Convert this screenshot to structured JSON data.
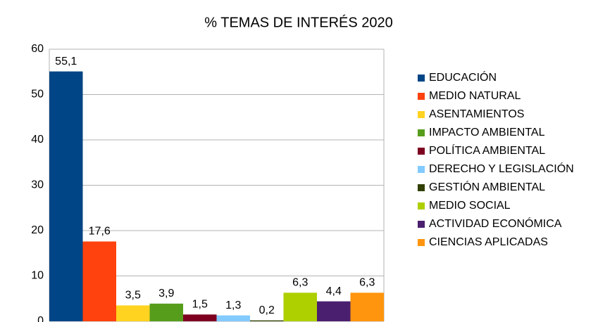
{
  "chart_data": {
    "type": "bar",
    "title": "% TEMAS DE INTERÉS 2020",
    "series": [
      {
        "name": "EDUCACIÓN",
        "color": "#004586",
        "values": [
          55.1
        ],
        "value_labels": [
          "55,1"
        ]
      },
      {
        "name": "MEDIO NATURAL",
        "color": "#ff420e",
        "values": [
          17.6
        ],
        "value_labels": [
          "17,6"
        ]
      },
      {
        "name": "ASENTAMIENTOS",
        "color": "#ffd320",
        "values": [
          3.5
        ],
        "value_labels": [
          "3,5"
        ]
      },
      {
        "name": "IMPACTO AMBIENTAL",
        "color": "#579d1c",
        "values": [
          3.9
        ],
        "value_labels": [
          "3,9"
        ]
      },
      {
        "name": "POLÍTICA AMBIENTAL",
        "color": "#7e0021",
        "values": [
          1.5
        ],
        "value_labels": [
          "1,5"
        ]
      },
      {
        "name": "DERECHO Y LEGISLACIÓN",
        "color": "#83caff",
        "values": [
          1.3
        ],
        "value_labels": [
          "1,3"
        ]
      },
      {
        "name": "GESTIÓN AMBIENTAL",
        "color": "#314004",
        "values": [
          0.2
        ],
        "value_labels": [
          "0,2"
        ]
      },
      {
        "name": "MEDIO SOCIAL",
        "color": "#aecf00",
        "values": [
          6.3
        ],
        "value_labels": [
          "6,3"
        ]
      },
      {
        "name": "ACTIVIDAD ECONÓMICA",
        "color": "#4b1f6f",
        "values": [
          4.4
        ],
        "value_labels": [
          "4,4"
        ]
      },
      {
        "name": "CIENCIAS APLICADAS",
        "color": "#ff950e",
        "values": [
          6.3
        ],
        "value_labels": [
          "6,3"
        ]
      }
    ],
    "ylim": [
      0,
      60
    ],
    "yticks": [
      0,
      10,
      20,
      30,
      40,
      50,
      60
    ],
    "grid": true,
    "legend": "right"
  }
}
